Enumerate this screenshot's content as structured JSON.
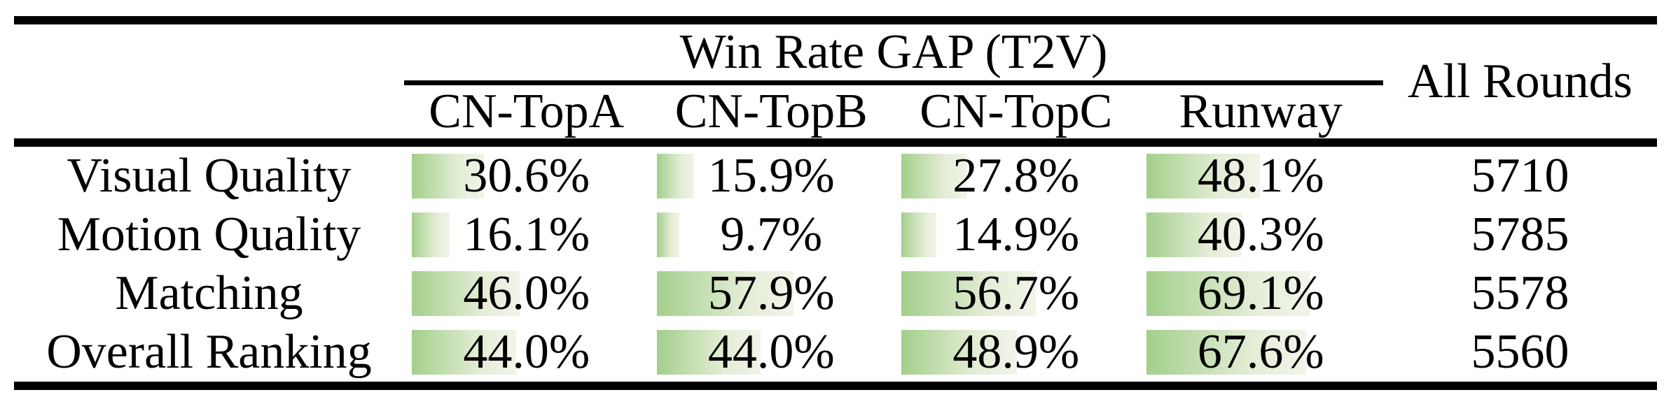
{
  "table": {
    "group_header": "Win Rate GAP (T2V)",
    "all_rounds_header": "All Rounds",
    "columns": [
      "CN-TopA",
      "CN-TopB",
      "CN-TopC",
      "Runway"
    ],
    "rows": [
      {
        "label": "Visual Quality",
        "values": [
          "30.6%",
          "15.9%",
          "27.8%",
          "48.1%"
        ],
        "all_rounds": "5710"
      },
      {
        "label": "Motion Quality",
        "values": [
          "16.1%",
          "9.7%",
          "14.9%",
          "40.3%"
        ],
        "all_rounds": "5785"
      },
      {
        "label": "Matching",
        "values": [
          "46.0%",
          "57.9%",
          "56.7%",
          "69.1%"
        ],
        "all_rounds": "5578"
      },
      {
        "label": "Overall Ranking",
        "values": [
          "44.0%",
          "44.0%",
          "48.9%",
          "67.6%"
        ],
        "all_rounds": "5560"
      }
    ]
  },
  "colors": {
    "bar_green": "#a3cf8b",
    "bar_fade": "#f1f5ea",
    "rule_black": "#000000",
    "background": "#ffffff"
  },
  "chart_data": {
    "type": "table",
    "title": "Win Rate GAP (T2V)",
    "columns": [
      "CN-TopA",
      "CN-TopB",
      "CN-TopC",
      "Runway",
      "All Rounds"
    ],
    "row_labels": [
      "Visual Quality",
      "Motion Quality",
      "Matching",
      "Overall Ranking"
    ],
    "win_rate_gap_percent": [
      [
        30.6,
        15.9,
        27.8,
        48.1
      ],
      [
        16.1,
        9.7,
        14.9,
        40.3
      ],
      [
        46.0,
        57.9,
        56.7,
        69.1
      ],
      [
        44.0,
        44.0,
        48.9,
        67.6
      ]
    ],
    "all_rounds": [
      5710,
      5785,
      5578,
      5560
    ],
    "layout_hints": "green gradient data bars behind percent values; bar width proportional to percent where 100% equals full cell width; thick black rules at top, below column headers, and at bottom; thin rule under group header spanning only the four gap columns"
  }
}
